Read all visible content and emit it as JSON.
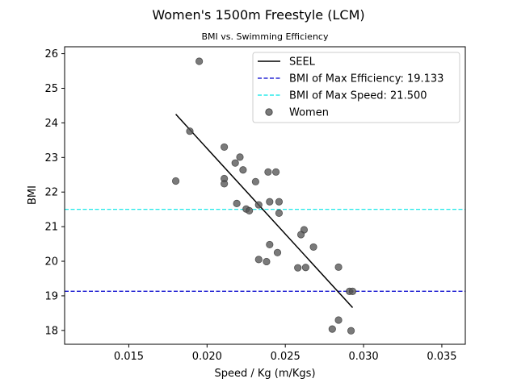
{
  "chart_data": {
    "type": "scatter",
    "title": "Women's 1500m Freestyle (LCM)",
    "subtitle": "BMI vs. Swimming Efficiency",
    "xlabel": "Speed / Kg (m/Kgs)",
    "ylabel": "BMI",
    "xlim": [
      0.0109,
      0.0365
    ],
    "ylim": [
      17.6,
      26.2
    ],
    "x_ticks": [
      0.015,
      0.02,
      0.025,
      0.03,
      0.035
    ],
    "x_tick_labels": [
      "0.015",
      "0.020",
      "0.025",
      "0.030",
      "0.035"
    ],
    "y_ticks": [
      18,
      19,
      20,
      21,
      22,
      23,
      24,
      25,
      26
    ],
    "y_tick_labels": [
      "18",
      "19",
      "20",
      "21",
      "22",
      "23",
      "24",
      "25",
      "26"
    ],
    "grid": false,
    "legend_position": "top-right",
    "series": [
      {
        "name": "Women",
        "kind": "scatter",
        "color": "#555555",
        "points": [
          [
            0.0195,
            25.78
          ],
          [
            0.0189,
            23.76
          ],
          [
            0.018,
            22.32
          ],
          [
            0.0211,
            23.3
          ],
          [
            0.0218,
            22.84
          ],
          [
            0.0221,
            23.01
          ],
          [
            0.0223,
            22.64
          ],
          [
            0.0211,
            22.39
          ],
          [
            0.0211,
            22.24
          ],
          [
            0.0219,
            21.67
          ],
          [
            0.0225,
            21.51
          ],
          [
            0.0227,
            21.46
          ],
          [
            0.0231,
            22.3
          ],
          [
            0.0233,
            21.63
          ],
          [
            0.0239,
            22.58
          ],
          [
            0.0244,
            22.58
          ],
          [
            0.024,
            21.72
          ],
          [
            0.0246,
            21.72
          ],
          [
            0.0246,
            21.39
          ],
          [
            0.0262,
            20.91
          ],
          [
            0.026,
            20.77
          ],
          [
            0.0268,
            20.41
          ],
          [
            0.024,
            20.48
          ],
          [
            0.0245,
            20.25
          ],
          [
            0.0233,
            20.05
          ],
          [
            0.0238,
            19.99
          ],
          [
            0.0258,
            19.81
          ],
          [
            0.0263,
            19.82
          ],
          [
            0.0284,
            19.83
          ],
          [
            0.0291,
            19.13
          ],
          [
            0.0293,
            19.13
          ],
          [
            0.0284,
            18.3
          ],
          [
            0.028,
            18.04
          ],
          [
            0.0292,
            17.99
          ]
        ]
      },
      {
        "name": "SEEL",
        "kind": "line",
        "color": "#000000",
        "points": [
          [
            0.018,
            24.25
          ],
          [
            0.0293,
            18.66
          ]
        ]
      },
      {
        "name": "BMI of Max Efficiency: 19.133",
        "kind": "hline",
        "color": "#0000cc",
        "y": 19.133
      },
      {
        "name": "BMI of Max Speed: 21.500",
        "kind": "hline",
        "color": "#00e5e5",
        "y": 21.5
      }
    ]
  }
}
